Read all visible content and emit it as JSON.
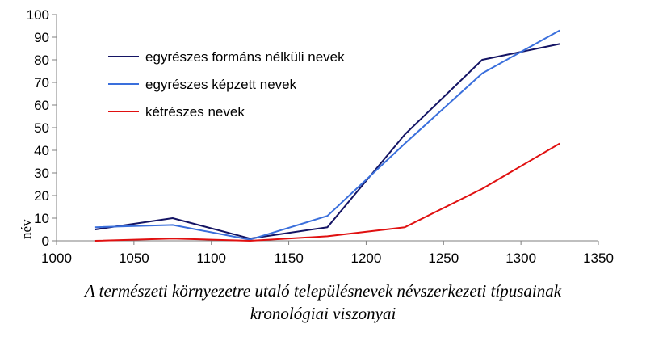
{
  "chart_data": {
    "type": "line",
    "x": [
      1025,
      1075,
      1125,
      1175,
      1225,
      1275,
      1325
    ],
    "xlim": [
      1000,
      1350
    ],
    "xticks": [
      1000,
      1050,
      1100,
      1150,
      1200,
      1250,
      1300,
      1350
    ],
    "ylim": [
      0,
      100
    ],
    "yticks": [
      0,
      10,
      20,
      30,
      40,
      50,
      60,
      70,
      80,
      90,
      100
    ],
    "ylabel": "név",
    "xlabel": "",
    "grid": false,
    "legend_position": "top-left",
    "series": [
      {
        "name": "egyrészes formáns nélküli nevek",
        "color": "#141464",
        "values": [
          5,
          10,
          1,
          6,
          47,
          80,
          87
        ]
      },
      {
        "name": "egyrészes képzett nevek",
        "color": "#3a6fdc",
        "values": [
          6,
          7,
          0.5,
          11,
          43,
          74,
          93
        ]
      },
      {
        "name": "kétrészes nevek",
        "color": "#e01010",
        "values": [
          0,
          1,
          0,
          2,
          6,
          23,
          43
        ]
      }
    ]
  },
  "caption": {
    "line1": "A természeti környezetre utaló településnevek névszerkezeti típusainak",
    "line2": "kronológiai viszonyai"
  }
}
